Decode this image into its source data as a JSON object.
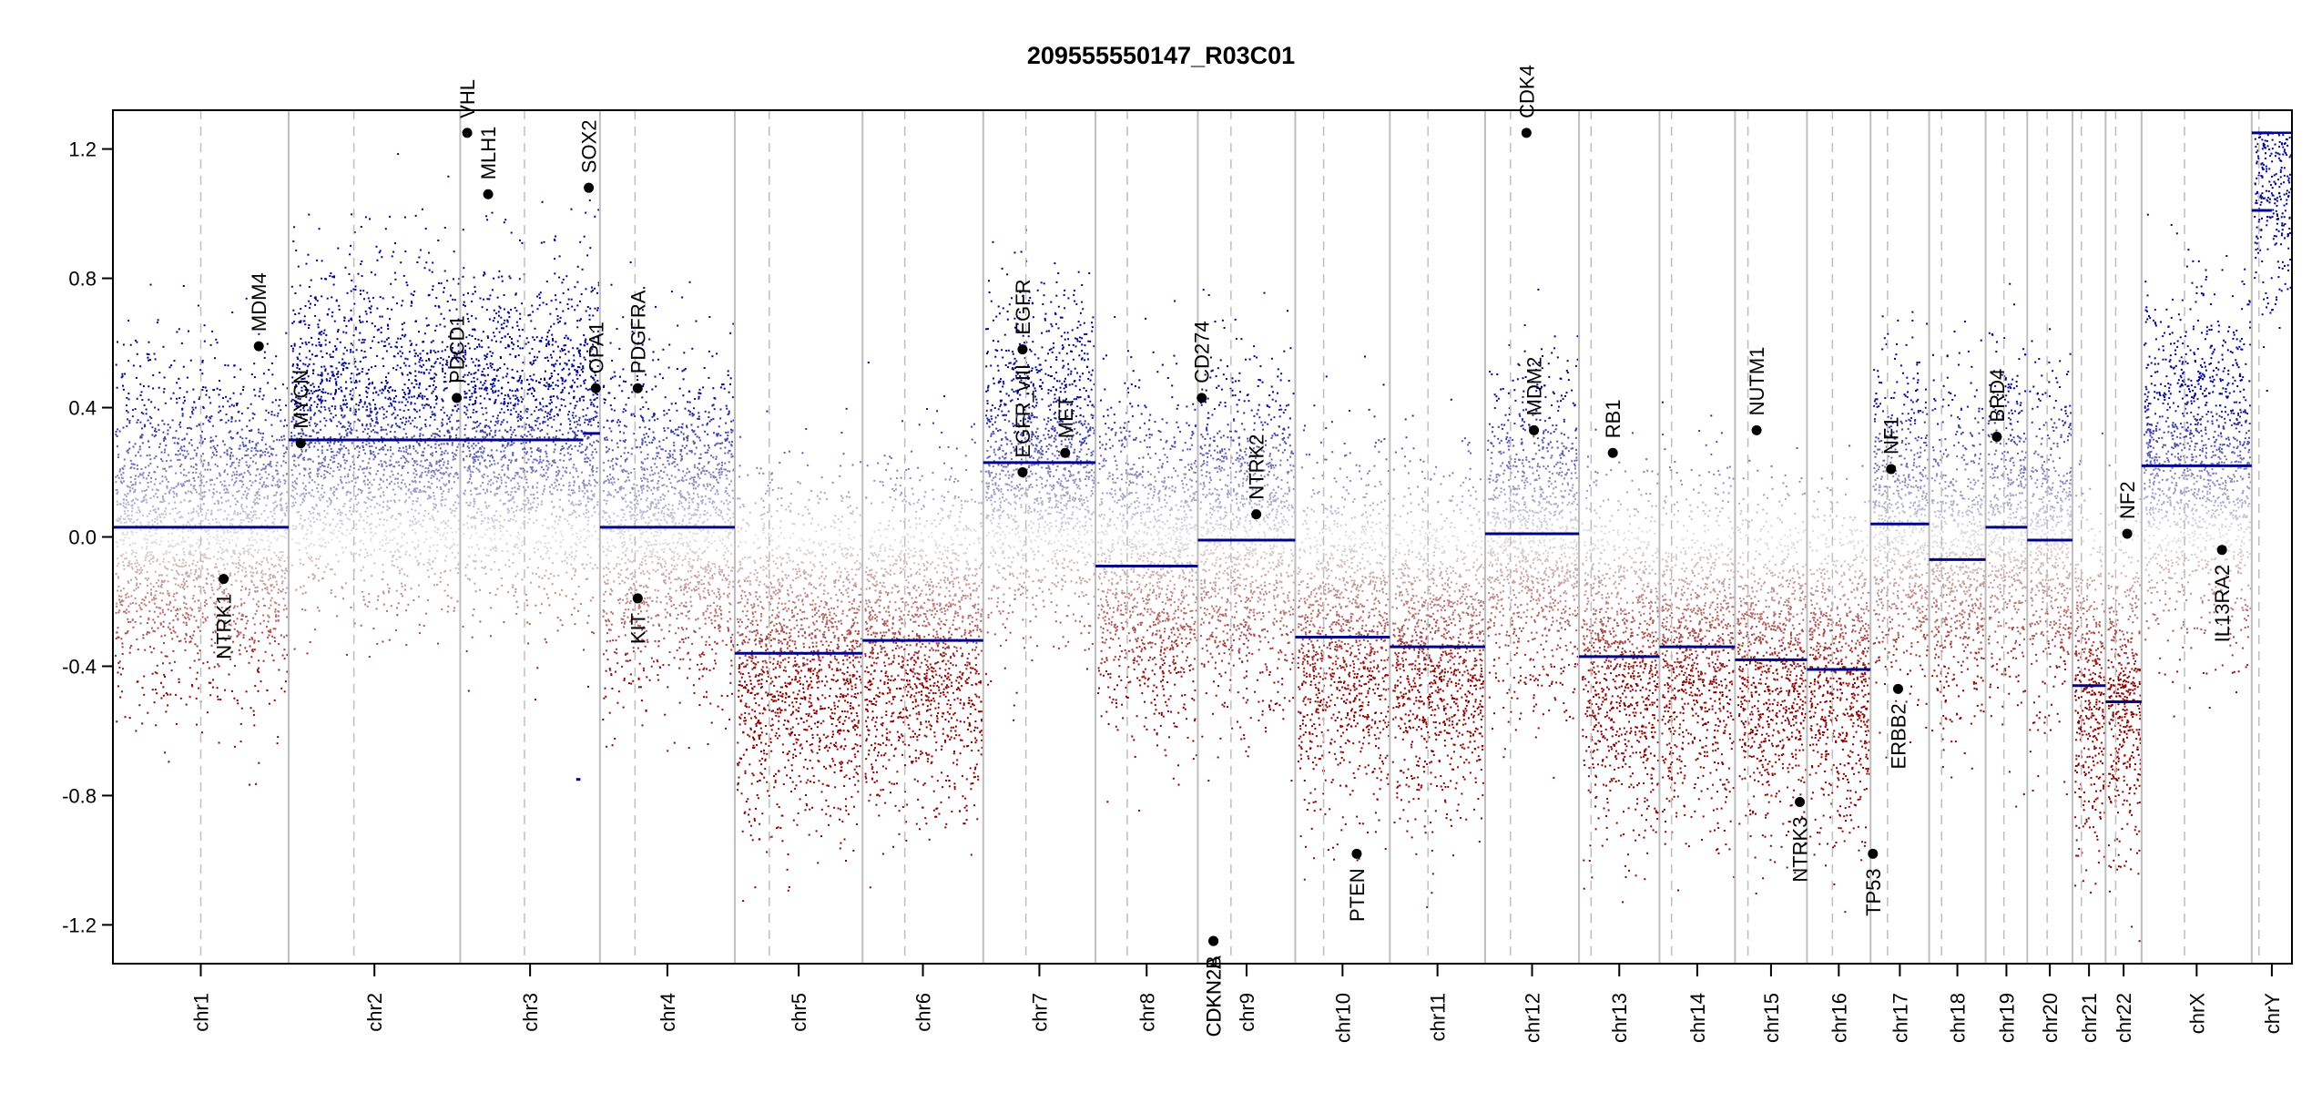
{
  "chart_data": {
    "type": "scatter",
    "title": "209555550147_R03C01",
    "xlabel": "",
    "ylabel": "",
    "ylim": [
      -1.32,
      1.32
    ],
    "y_ticks": [
      -1.2,
      -0.8,
      -0.4,
      0.0,
      0.4,
      0.8,
      1.2
    ],
    "y_tick_labels": [
      "-1.2",
      "-0.8",
      "-0.4",
      "0.0",
      "0.4",
      "0.8",
      "1.2"
    ],
    "clip_range": [
      -1.25,
      1.25
    ],
    "grid": false,
    "colors": {
      "gain": "#00008b",
      "loss": "#8b0000",
      "segment": "#00008b",
      "chrom_boundary": "#bebebe",
      "centromere": "#bebebe",
      "axis": "#000000",
      "gene_point": "#000000"
    },
    "chromosomes": [
      {
        "name": "chr1",
        "length": 249,
        "centromere": 0.5,
        "seed": 11
      },
      {
        "name": "chr2",
        "length": 243,
        "centromere": 0.38,
        "seed": 12
      },
      {
        "name": "chr3",
        "length": 198,
        "centromere": 0.46,
        "seed": 13
      },
      {
        "name": "chr4",
        "length": 191,
        "centromere": 0.26,
        "seed": 14
      },
      {
        "name": "chr5",
        "length": 181,
        "centromere": 0.27,
        "seed": 15
      },
      {
        "name": "chr6",
        "length": 171,
        "centromere": 0.35,
        "seed": 16
      },
      {
        "name": "chr7",
        "length": 159,
        "centromere": 0.38,
        "seed": 17
      },
      {
        "name": "chr8",
        "length": 145,
        "centromere": 0.31,
        "seed": 18
      },
      {
        "name": "chr9",
        "length": 138,
        "centromere": 0.34,
        "seed": 19
      },
      {
        "name": "chr10",
        "length": 134,
        "centromere": 0.3,
        "seed": 20
      },
      {
        "name": "chr11",
        "length": 135,
        "centromere": 0.4,
        "seed": 21
      },
      {
        "name": "chr12",
        "length": 133,
        "centromere": 0.27,
        "seed": 22
      },
      {
        "name": "chr13",
        "length": 114,
        "centromere": 0.15,
        "seed": 23
      },
      {
        "name": "chr14",
        "length": 107,
        "centromere": 0.16,
        "seed": 24
      },
      {
        "name": "chr15",
        "length": 102,
        "centromere": 0.18,
        "seed": 25
      },
      {
        "name": "chr16",
        "length": 90,
        "centromere": 0.4,
        "seed": 26
      },
      {
        "name": "chr17",
        "length": 83,
        "centromere": 0.29,
        "seed": 27
      },
      {
        "name": "chr18",
        "length": 80,
        "centromere": 0.22,
        "seed": 28
      },
      {
        "name": "chr19",
        "length": 59,
        "centromere": 0.44,
        "seed": 29
      },
      {
        "name": "chr20",
        "length": 64,
        "centromere": 0.44,
        "seed": 30
      },
      {
        "name": "chr21",
        "length": 47,
        "centromere": 0.27,
        "seed": 31
      },
      {
        "name": "chr22",
        "length": 51,
        "centromere": 0.28,
        "seed": 32
      },
      {
        "name": "chrX",
        "length": 156,
        "centromere": 0.39,
        "seed": 33
      },
      {
        "name": "chrY",
        "length": 57,
        "centromere": 0.18,
        "seed": 34
      }
    ],
    "segments": [
      {
        "chrom": "chr1",
        "from": 0.0,
        "to": 1.0,
        "value": 0.03
      },
      {
        "chrom": "chr2",
        "from": 0.0,
        "to": 1.0,
        "value": 0.3
      },
      {
        "chrom": "chr3",
        "from": 0.0,
        "to": 0.88,
        "value": 0.3
      },
      {
        "chrom": "chr3",
        "from": 0.88,
        "to": 1.0,
        "value": 0.32
      },
      {
        "chrom": "chr3",
        "from": 0.83,
        "to": 0.86,
        "value": -0.75
      },
      {
        "chrom": "chr4",
        "from": 0.0,
        "to": 1.0,
        "value": 0.03
      },
      {
        "chrom": "chr5",
        "from": 0.0,
        "to": 1.0,
        "value": -0.36
      },
      {
        "chrom": "chr6",
        "from": 0.0,
        "to": 1.0,
        "value": -0.32
      },
      {
        "chrom": "chr7",
        "from": 0.0,
        "to": 1.0,
        "value": 0.23
      },
      {
        "chrom": "chr8",
        "from": 0.0,
        "to": 1.0,
        "value": -0.09
      },
      {
        "chrom": "chr9",
        "from": 0.0,
        "to": 1.0,
        "value": -0.01
      },
      {
        "chrom": "chr10",
        "from": 0.0,
        "to": 1.0,
        "value": -0.31
      },
      {
        "chrom": "chr11",
        "from": 0.0,
        "to": 1.0,
        "value": -0.34
      },
      {
        "chrom": "chr12",
        "from": 0.0,
        "to": 1.0,
        "value": 0.01
      },
      {
        "chrom": "chr13",
        "from": 0.0,
        "to": 1.0,
        "value": -0.37
      },
      {
        "chrom": "chr14",
        "from": 0.0,
        "to": 1.0,
        "value": -0.34
      },
      {
        "chrom": "chr15",
        "from": 0.0,
        "to": 1.0,
        "value": -0.38
      },
      {
        "chrom": "chr16",
        "from": 0.0,
        "to": 1.0,
        "value": -0.41
      },
      {
        "chrom": "chr17",
        "from": 0.0,
        "to": 1.0,
        "value": 0.04
      },
      {
        "chrom": "chr18",
        "from": 0.0,
        "to": 1.0,
        "value": -0.07
      },
      {
        "chrom": "chr19",
        "from": 0.0,
        "to": 1.0,
        "value": 0.03
      },
      {
        "chrom": "chr20",
        "from": 0.0,
        "to": 1.0,
        "value": -0.01
      },
      {
        "chrom": "chr21",
        "from": 0.0,
        "to": 1.0,
        "value": -0.46
      },
      {
        "chrom": "chr22",
        "from": 0.0,
        "to": 1.0,
        "value": -0.51
      },
      {
        "chrom": "chrX",
        "from": 0.0,
        "to": 1.0,
        "value": 0.22
      },
      {
        "chrom": "chrY",
        "from": 0.0,
        "to": 0.5,
        "value": 1.25
      },
      {
        "chrom": "chrY",
        "from": 0.0,
        "to": 0.5,
        "value": 1.01
      }
    ],
    "genes": [
      {
        "name": "NTRK1",
        "chrom": "chr1",
        "pos": 0.63,
        "value": -0.13
      },
      {
        "name": "MDM4",
        "chrom": "chr1",
        "pos": 0.83,
        "value": 0.59
      },
      {
        "name": "MYCN",
        "chrom": "chr2",
        "pos": 0.07,
        "value": 0.29
      },
      {
        "name": "PDCD1",
        "chrom": "chr2",
        "pos": 0.98,
        "value": 0.43
      },
      {
        "name": "VHL",
        "chrom": "chr3",
        "pos": 0.05,
        "value": 1.25
      },
      {
        "name": "MLH1",
        "chrom": "chr3",
        "pos": 0.2,
        "value": 1.06
      },
      {
        "name": "SOX2",
        "chrom": "chr3",
        "pos": 0.92,
        "value": 1.08
      },
      {
        "name": "OPA1",
        "chrom": "chr3",
        "pos": 0.97,
        "value": 0.46
      },
      {
        "name": "PDGFRA",
        "chrom": "chr4",
        "pos": 0.28,
        "value": 0.46
      },
      {
        "name": "KIT",
        "chrom": "chr4",
        "pos": 0.28,
        "value": -0.19
      },
      {
        "name": "EGFR_vIII",
        "chrom": "chr7",
        "pos": 0.35,
        "value": 0.2
      },
      {
        "name": "EGFR",
        "chrom": "chr7",
        "pos": 0.35,
        "value": 0.58
      },
      {
        "name": "MET",
        "chrom": "chr7",
        "pos": 0.73,
        "value": 0.26
      },
      {
        "name": "CD274",
        "chrom": "chr9",
        "pos": 0.04,
        "value": 0.43
      },
      {
        "name": "CDKN2A",
        "chrom": "chr9",
        "pos": 0.16,
        "value": -1.25
      },
      {
        "name": "CDKN2B",
        "chrom": "chr9",
        "pos": 0.16,
        "value": -1.25
      },
      {
        "name": "NTRK2",
        "chrom": "chr9",
        "pos": 0.6,
        "value": 0.07
      },
      {
        "name": "PTEN",
        "chrom": "chr10",
        "pos": 0.65,
        "value": -0.98
      },
      {
        "name": "CDK4",
        "chrom": "chr12",
        "pos": 0.44,
        "value": 1.25
      },
      {
        "name": "MDM2",
        "chrom": "chr12",
        "pos": 0.52,
        "value": 0.33
      },
      {
        "name": "RB1",
        "chrom": "chr13",
        "pos": 0.42,
        "value": 0.26
      },
      {
        "name": "NUTM1",
        "chrom": "chr15",
        "pos": 0.3,
        "value": 0.33
      },
      {
        "name": "NTRK3",
        "chrom": "chr15",
        "pos": 0.9,
        "value": -0.82
      },
      {
        "name": "TP53",
        "chrom": "chr17",
        "pos": 0.04,
        "value": -0.98
      },
      {
        "name": "NF1",
        "chrom": "chr17",
        "pos": 0.35,
        "value": 0.21
      },
      {
        "name": "ERBB2",
        "chrom": "chr17",
        "pos": 0.47,
        "value": -0.47
      },
      {
        "name": "BRD4",
        "chrom": "chr19",
        "pos": 0.27,
        "value": 0.31
      },
      {
        "name": "NF2",
        "chrom": "chr22",
        "pos": 0.6,
        "value": 0.01
      },
      {
        "name": "IL13RA2",
        "chrom": "chrX",
        "pos": 0.73,
        "value": -0.04
      }
    ]
  }
}
